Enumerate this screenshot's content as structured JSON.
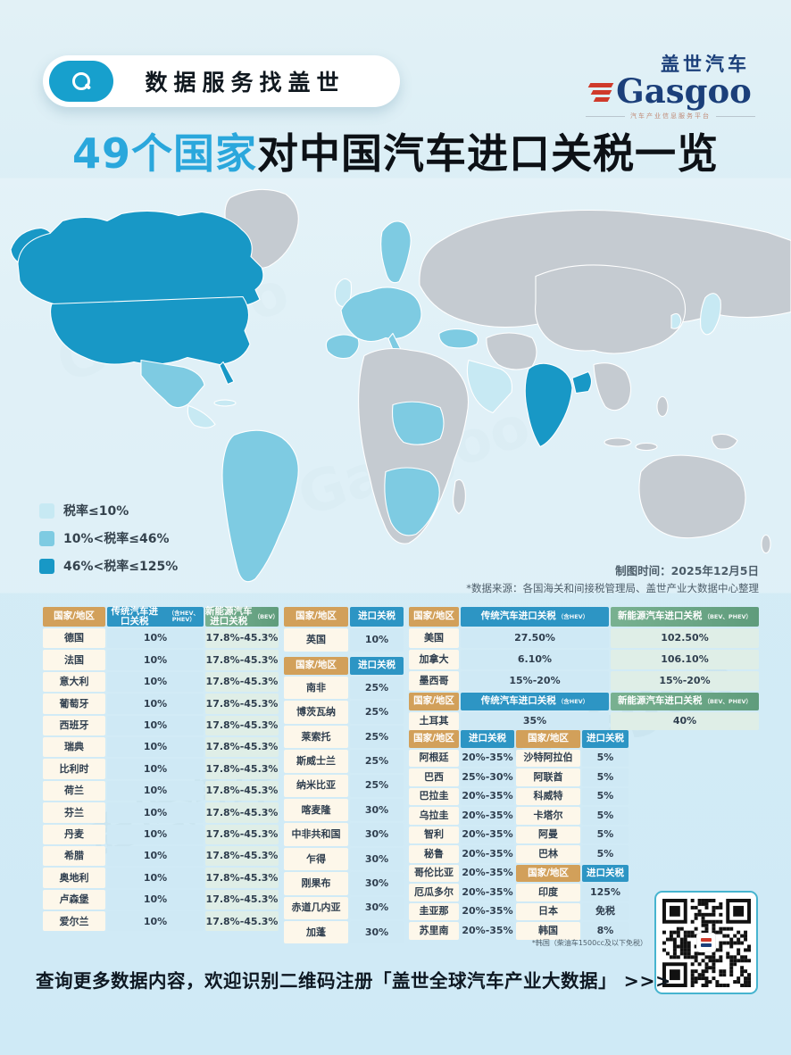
{
  "header": {
    "search_label": "数据服务找盖世",
    "logo": {
      "cn": "盖世汽车",
      "en_g": "G",
      "en_rest": "asgoo",
      "tagline": "汽车产业信息服务平台"
    }
  },
  "title": {
    "highlight": "49个国家",
    "rest": "对中国汽车进口关税一览"
  },
  "legend": [
    {
      "color": "#c7e9f3",
      "label": "税率≤10%"
    },
    {
      "color": "#7ecbe2",
      "label": "10%<税率≤46%"
    },
    {
      "color": "#1898c6",
      "label": "46%<税率≤125%"
    }
  ],
  "meta": {
    "made_time": "制图时间：2025年12月5日",
    "source": "*数据来源：各国海关和间接税管理局、盖世产业大数据中心整理"
  },
  "chart_data": {
    "type": "table",
    "title": "49个国家对中国汽车进口关税一览",
    "tables": {
      "eu": {
        "headers": [
          {
            "label": "国家/地区"
          },
          {
            "label": "传统汽车进口关税",
            "sub": "（含HEV、PHEV）"
          },
          {
            "label": "新能源汽车进口关税",
            "sub": "（BEV）"
          }
        ],
        "rows": [
          [
            "德国",
            "10%",
            "17.8%-45.3%"
          ],
          [
            "法国",
            "10%",
            "17.8%-45.3%"
          ],
          [
            "意大利",
            "10%",
            "17.8%-45.3%"
          ],
          [
            "葡萄牙",
            "10%",
            "17.8%-45.3%"
          ],
          [
            "西班牙",
            "10%",
            "17.8%-45.3%"
          ],
          [
            "瑞典",
            "10%",
            "17.8%-45.3%"
          ],
          [
            "比利时",
            "10%",
            "17.8%-45.3%"
          ],
          [
            "荷兰",
            "10%",
            "17.8%-45.3%"
          ],
          [
            "芬兰",
            "10%",
            "17.8%-45.3%"
          ],
          [
            "丹麦",
            "10%",
            "17.8%-45.3%"
          ],
          [
            "希腊",
            "10%",
            "17.8%-45.3%"
          ],
          [
            "奥地利",
            "10%",
            "17.8%-45.3%"
          ],
          [
            "卢森堡",
            "10%",
            "17.8%-45.3%"
          ],
          [
            "爱尔兰",
            "10%",
            "17.8%-45.3%"
          ]
        ]
      },
      "uk": {
        "headers": [
          {
            "label": "国家/地区"
          },
          {
            "label": "进口关税"
          }
        ],
        "rows": [
          [
            "英国",
            "10%"
          ]
        ]
      },
      "africa": {
        "headers": [
          {
            "label": "国家/地区"
          },
          {
            "label": "进口关税"
          }
        ],
        "rows": [
          [
            "南非",
            "25%"
          ],
          [
            "博茨瓦纳",
            "25%"
          ],
          [
            "莱索托",
            "25%"
          ],
          [
            "斯威士兰",
            "25%"
          ],
          [
            "纳米比亚",
            "25%"
          ],
          [
            "喀麦隆",
            "30%"
          ],
          [
            "中非共和国",
            "30%"
          ],
          [
            "乍得",
            "30%"
          ],
          [
            "刚果布",
            "30%"
          ],
          [
            "赤道几内亚",
            "30%"
          ],
          [
            "加蓬",
            "30%"
          ]
        ]
      },
      "north_america": {
        "headers": [
          {
            "label": "国家/地区"
          },
          {
            "label": "传统汽车进口关税",
            "sub": "（含HEV）"
          },
          {
            "label": "新能源汽车进口关税",
            "sub": "（BEV、PHEV）"
          }
        ],
        "rows": [
          [
            "美国",
            "27.50%",
            "102.50%"
          ],
          [
            "加拿大",
            "6.10%",
            "106.10%"
          ],
          [
            "墨西哥",
            "15%-20%",
            "15%-20%"
          ]
        ]
      },
      "turkey": {
        "headers": [
          {
            "label": "国家/地区"
          },
          {
            "label": "传统汽车进口关税",
            "sub": "（含HEV）"
          },
          {
            "label": "新能源汽车进口关税",
            "sub": "（BEV、PHEV）"
          }
        ],
        "rows": [
          [
            "土耳其",
            "35%",
            "40%"
          ]
        ]
      },
      "pairs_left": {
        "headers": [
          {
            "label": "国家/地区"
          },
          {
            "label": "进口关税"
          }
        ],
        "rows": [
          [
            "阿根廷",
            "20%-35%"
          ],
          [
            "巴西",
            "25%-30%"
          ],
          [
            "巴拉圭",
            "20%-35%"
          ],
          [
            "乌拉圭",
            "20%-35%"
          ],
          [
            "智利",
            "20%-35%"
          ],
          [
            "秘鲁",
            "20%-35%"
          ],
          [
            "哥伦比亚",
            "20%-35%"
          ],
          [
            "厄瓜多尔",
            "20%-35%"
          ],
          [
            "圭亚那",
            "20%-35%"
          ],
          [
            "苏里南",
            "20%-35%"
          ]
        ]
      },
      "pairs_right": {
        "blocks": [
          {
            "headers": [
              {
                "label": "国家/地区"
              },
              {
                "label": "进口关税"
              }
            ],
            "rows": [
              [
                "沙特阿拉伯",
                "5%"
              ],
              [
                "阿联酋",
                "5%"
              ],
              [
                "科威特",
                "5%"
              ],
              [
                "卡塔尔",
                "5%"
              ],
              [
                "阿曼",
                "5%"
              ],
              [
                "巴林",
                "5%"
              ]
            ]
          },
          {
            "headers": [
              {
                "label": "国家/地区"
              },
              {
                "label": "进口关税"
              }
            ],
            "rows": [
              [
                "印度",
                "125%"
              ],
              [
                "日本",
                "免税"
              ],
              [
                "韩国",
                "8%"
              ]
            ]
          }
        ]
      }
    }
  },
  "footnote": "*韩国（柴油车1500cc及以下免税）",
  "bottom": {
    "cta_prefix": "查询更多数据内容，欢迎识别二维码注册",
    "cta_bold": "「盖世全球汽车产业大数据」",
    "cta_suffix": " >>>"
  }
}
